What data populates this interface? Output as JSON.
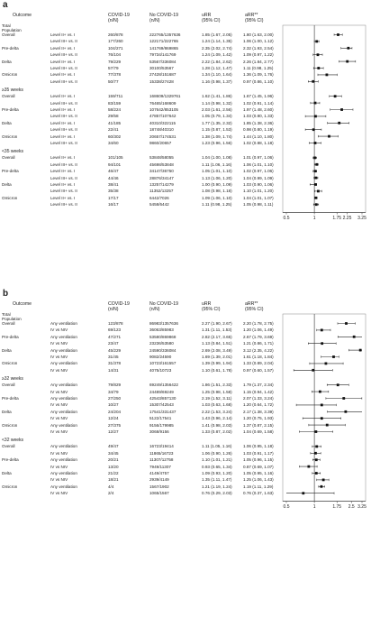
{
  "panel_a": {
    "label": "a",
    "headers": [
      "Outcome",
      "COVID-19\n(n/N)",
      "No COVID-19\n(n/N)",
      "uRR\n(95% CI)",
      "aRR**\n(95% CI)"
    ],
    "ticks": [
      "0.5",
      "1",
      "1.75",
      "2.25",
      "3.25"
    ],
    "sections": [
      {
        "title": "",
        "rows": [
          {
            "group": "Total\nPopulation\nOverall",
            "comp": "Level II+ vs. I",
            "c1": "260/878",
            "c2": "222765/1357636",
            "c3": "1.85 (1.67, 2.05)",
            "c4": "1.80 (1.63, 2.00)",
            "est": 1.8,
            "lo": 1.63,
            "hi": 2.0
          },
          {
            "group": "",
            "comp": "Level III+ vs. II",
            "c1": "177/260",
            "c2": "122171/222765",
            "c3": "1.24 (1.14, 1.35)",
            "c4": "1.06 (1.00, 1.12)",
            "est": 1.06,
            "lo": 1.0,
            "hi": 1.12
          },
          {
            "group": "Pre-delta",
            "comp": "Level II+ vs. I",
            "c1": "104/271",
            "c2": "141769/869865",
            "c3": "2.35 (2.02, 2.74)",
            "c4": "2.32 (1.93, 2.54)",
            "est": 2.32,
            "lo": 1.93,
            "hi": 2.54
          },
          {
            "group": "",
            "comp": "Level III+ vs. II",
            "c1": "76/104",
            "c2": "79734/141769",
            "c3": "1.24 (1.09, 1.42)",
            "c4": "1.09 (0.97, 1.22)",
            "est": 1.09,
            "lo": 0.97,
            "hi": 1.22
          },
          {
            "group": "Delta",
            "comp": "Level II+ vs. I",
            "c1": "79/229",
            "c2": "53567/336084",
            "c3": "2.22 (1.84, 2.62)",
            "c4": "2.26 (1.84, 2.77)",
            "est": 2.26,
            "lo": 1.84,
            "hi": 2.77
          },
          {
            "group": "",
            "comp": "Level III+ vs. II",
            "c1": "57/79",
            "c2": "30100/53567",
            "c3": "1.28 (1.12, 1.47)",
            "c4": "1.11 (0.98, 1.25)",
            "est": 1.11,
            "lo": 0.98,
            "hi": 1.25
          },
          {
            "group": "Omicron",
            "comp": "Level II+ vs. I",
            "c1": "77/378",
            "c2": "27428/151687",
            "c3": "1.34 (1.10, 1.64)",
            "c4": "1.36 (1.09, 1.76)",
            "est": 1.36,
            "lo": 1.09,
            "hi": 1.76
          },
          {
            "group": "",
            "comp": "Level III+ vs. II",
            "c1": "50/77",
            "c2": "15338/27428",
            "c3": "1.16 (0.98, 1.37)",
            "c4": "0.97 (0.86, 1.10)",
            "est": 0.97,
            "lo": 0.86,
            "hi": 1.1
          }
        ]
      },
      {
        "title": "≥35 weeks",
        "rows": [
          {
            "group": "Overall",
            "comp": "Level II+ vs. I",
            "c1": "159/711",
            "c2": "168609/1329761",
            "c3": "1.62 (1.41, 1.86)",
            "c4": "1.67 (1.45, 1.96)",
            "est": 1.67,
            "lo": 1.45,
            "hi": 1.96
          },
          {
            "group": "",
            "comp": "Level III+ vs. II",
            "c1": "83/159",
            "c2": "76465/168609",
            "c3": "1.14 (0.98, 1.32)",
            "c4": "1.02 (0.91, 1.14)",
            "est": 1.02,
            "lo": 0.91,
            "hi": 1.14
          },
          {
            "group": "Pre-delta",
            "comp": "Level II+ vs. I",
            "c1": "58/224",
            "c2": "107642/853105",
            "c3": "2.03 (1.61, 2.56)",
            "c4": "1.97 (1.48, 2.60)",
            "est": 1.97,
            "lo": 1.48,
            "hi": 2.6
          },
          {
            "group": "",
            "comp": "Level III+ vs. II",
            "c1": "29/58",
            "c2": "47857/107642",
            "c3": "1.05 (0.79, 1.34)",
            "c4": "1.03 (0.80, 1.33)",
            "est": 1.03,
            "lo": 0.8,
            "hi": 1.33
          },
          {
            "group": "Delta",
            "comp": "Level II+ vs. I",
            "c1": "41/185",
            "c2": "40310/322115",
            "c3": "1.77 (1.35, 2.32)",
            "c4": "1.85 (1.38, 2.36)",
            "est": 1.85,
            "lo": 1.38,
            "hi": 2.36
          },
          {
            "group": "",
            "comp": "Level III+ vs. II",
            "c1": "22/41",
            "c2": "18748/40310",
            "c3": "1.15 (0.87, 1.53)",
            "c4": "0.98 (0.80, 1.19)",
            "est": 0.98,
            "lo": 0.8,
            "hi": 1.19
          },
          {
            "group": "Omicron",
            "comp": "Level II+ vs. I",
            "c1": "60/302",
            "c2": "20657/174531",
            "c3": "1.38 (1.09, 1.74)",
            "c4": "1.44 (1.10, 1.80)",
            "est": 1.44,
            "lo": 1.1,
            "hi": 1.8
          },
          {
            "group": "",
            "comp": "Level III+ vs. II",
            "c1": "34/60",
            "c2": "9860/20657",
            "c3": "1.23 (0.96, 1.56)",
            "c4": "1.02 (0.88, 1.18)",
            "est": 1.02,
            "lo": 0.88,
            "hi": 1.18
          }
        ]
      },
      {
        "title": "<35 weeks",
        "rows": [
          {
            "group": "Overall",
            "comp": "Level II+ vs. I",
            "c1": "101/105",
            "c2": "53848/58055",
            "c3": "1.04 (1.00, 1.08)",
            "c4": "1.01 (0.97, 1.06)",
            "est": 1.01,
            "lo": 0.97,
            "hi": 1.06
          },
          {
            "group": "",
            "comp": "Level III+ vs. II",
            "c1": "94/101",
            "c2": "45698/53848",
            "c3": "1.11 (1.06, 1.16)",
            "c4": "1.06 (1.01, 1.10)",
            "est": 1.06,
            "lo": 1.01,
            "hi": 1.1
          },
          {
            "group": "Pre-delta",
            "comp": "Level II+ vs. I",
            "c1": "46/47",
            "c2": "34147/36750",
            "c3": "1.05 (1.01, 1.10)",
            "c4": "1.02 (0.97, 1.06)",
            "est": 1.02,
            "lo": 0.97,
            "hi": 1.06
          },
          {
            "group": "",
            "comp": "Level III+ vs. II",
            "c1": "44/46",
            "c2": "28876/34147",
            "c3": "1.13 (1.06, 1.20)",
            "c4": "1.04 (0.99, 1.09)",
            "est": 1.04,
            "lo": 0.99,
            "hi": 1.09
          },
          {
            "group": "Delta",
            "comp": "Level II+ vs. I",
            "c1": "38/41",
            "c2": "13257/14279",
            "c3": "1.00 (0.90, 1.09)",
            "c4": "1.03 (0.90, 1.06)",
            "est": 1.03,
            "lo": 0.9,
            "hi": 1.06
          },
          {
            "group": "",
            "comp": "Level III+ vs. II",
            "c1": "35/38",
            "c2": "11352/13257",
            "c3": "1.08 (0.98, 1.18)",
            "c4": "1.10 (1.01, 1.20)",
            "est": 1.1,
            "lo": 1.01,
            "hi": 1.2
          },
          {
            "group": "Omicron",
            "comp": "Level II+ vs. I",
            "c1": "17/17",
            "c2": "6442/7026",
            "c3": "1.09 (1.06, 1.10)",
            "c4": "1.04 (1.01, 1.07)",
            "est": 1.04,
            "lo": 1.01,
            "hi": 1.07
          },
          {
            "group": "",
            "comp": "Level III+ vs. II",
            "c1": "16/17",
            "c2": "5458/6442",
            "c3": "1.11 (0.98, 1.25)",
            "c4": "1.05 (0.98, 1.11)",
            "est": 1.05,
            "lo": 0.98,
            "hi": 1.11
          }
        ]
      }
    ]
  },
  "panel_b": {
    "label": "b",
    "headers": [
      "Outcome",
      "COVID-19\n(n/N)",
      "No COVID-19\n(n/N)",
      "uRR\n(95% CI)",
      "aRR**\n(95% CI)"
    ],
    "ticks": [
      "0.5",
      "1",
      "1.75",
      "2.5",
      "3.25"
    ],
    "sections": [
      {
        "title": "",
        "rows": [
          {
            "group": "Total\nPopulation\nOverall",
            "comp": "Any ventilation",
            "c1": "123/878",
            "c2": "86983/1357636",
            "c3": "2.27 (1.90, 2.67)",
            "c4": "2.20 (1.78, 2.75)",
            "est": 2.2,
            "lo": 1.78,
            "hi": 2.75
          },
          {
            "group": "",
            "comp": "IV vs NIV",
            "c1": "69/123",
            "c2": "36063/85983",
            "c3": "1.31 (1.11, 1.53)",
            "c4": "1.20 (1.06, 1.49)",
            "est": 1.2,
            "lo": 1.06,
            "hi": 1.49
          },
          {
            "group": "Pre-delta",
            "comp": "Any ventilation",
            "c1": "47/271",
            "c2": "53580/869868",
            "c3": "2.82 (2.17, 3.65)",
            "c4": "2.67 (1.79, 3.69)",
            "est": 2.67,
            "lo": 1.79,
            "hi": 3.69
          },
          {
            "group": "",
            "comp": "IV vs NIV",
            "c1": "23/47",
            "c2": "23236/53580",
            "c3": "1.13 (0.84, 1.51)",
            "c4": "1.21 (0.86, 1.71)",
            "est": 1.21,
            "lo": 0.86,
            "hi": 1.71
          },
          {
            "group": "Delta",
            "comp": "Any ventilation",
            "c1": "45/229",
            "c2": "24590/336084",
            "c3": "2.69 (2.08, 3.49)",
            "c4": "3.12 (2.35, 4.22)",
            "est": 3.12,
            "lo": 2.35,
            "hi": 4.22
          },
          {
            "group": "",
            "comp": "IV vs NIV",
            "c1": "31/45",
            "c2": "9082/24590",
            "c3": "1.69 (1.39, 2.01)",
            "c4": "1.61 (1.18, 1.84)",
            "est": 1.61,
            "lo": 1.18,
            "hi": 1.84
          },
          {
            "group": "Omicron",
            "comp": "Any ventilation",
            "c1": "31/378",
            "c2": "10723/161557",
            "c3": "1.39 (0.99, 1.94)",
            "c4": "1.33 (0.89, 2.04)",
            "est": 1.33,
            "lo": 0.89,
            "hi": 2.04
          },
          {
            "group": "",
            "comp": "IV vs NIV",
            "c1": "14/31",
            "c2": "4075/10723",
            "c3": "1.10 (0.61, 1.78)",
            "c4": "0.97 (0.60, 1.57)",
            "est": 0.97,
            "lo": 0.6,
            "hi": 1.57
          }
        ]
      },
      {
        "title": "≥32 weeks",
        "rows": [
          {
            "group": "Overall",
            "comp": "Any ventilation",
            "c1": "79/829",
            "c2": "69249/1356422",
            "c3": "1.86 (1.51, 2.33)",
            "c4": "1.79 (1.37, 2.34)",
            "est": 1.79,
            "lo": 1.37,
            "hi": 2.34
          },
          {
            "group": "",
            "comp": "IV vs NIV",
            "c1": "34/79",
            "c2": "24489/69249",
            "c3": "1.25 (0.98, 1.58)",
            "c4": "1.15 (0.94, 1.42)",
            "est": 1.15,
            "lo": 0.94,
            "hi": 1.42
          },
          {
            "group": "Pre-delta",
            "comp": "Any ventilation",
            "c1": "27/250",
            "c2": "42543/857130",
            "c3": "2.19 (1.52, 3.11)",
            "c4": "2.07 (1.33, 3.24)",
            "est": 2.07,
            "lo": 1.33,
            "hi": 3.24
          },
          {
            "group": "",
            "comp": "IV vs NIV",
            "c1": "10/27",
            "c2": "15307/42543",
            "c3": "1.03 (0.63, 1.68)",
            "c4": "1.20 (0.64, 1.72)",
            "est": 1.2,
            "lo": 0.64,
            "hi": 1.72
          },
          {
            "group": "Delta",
            "comp": "Any ventilation",
            "c1": "24/204",
            "c2": "17541/331437",
            "c3": "2.22 (1.53, 3.24)",
            "c4": "2.17 (1.38, 3.39)",
            "est": 2.17,
            "lo": 1.38,
            "hi": 3.39
          },
          {
            "group": "",
            "comp": "IV vs NIV",
            "c1": "12/24",
            "c2": "5122/17541",
            "c3": "1.43 (0.96, 2.14)",
            "c4": "1.20 (0.75, 1.93)",
            "est": 1.2,
            "lo": 0.75,
            "hi": 1.93
          },
          {
            "group": "Omicron",
            "comp": "Any ventilation",
            "c1": "27/375",
            "c2": "9156/179985",
            "c3": "1.41 (0.98, 2.03)",
            "c4": "1.37 (0.87, 2.15)",
            "est": 1.37,
            "lo": 0.87,
            "hi": 2.15
          },
          {
            "group": "",
            "comp": "IV vs NIV",
            "c1": "12/27",
            "c2": "3068/9156",
            "c3": "1.33 (0.87, 2.02)",
            "c4": "1.04 (0.69, 1.58)",
            "est": 1.04,
            "lo": 0.69,
            "hi": 1.58
          }
        ]
      },
      {
        "title": "<32 weeks",
        "rows": [
          {
            "group": "Overall",
            "comp": "Any ventilation",
            "c1": "49/47",
            "c2": "16723/19414",
            "c3": "1.11 (1.05, 1.16)",
            "c4": "1.06 (0.95, 1.18)",
            "est": 1.06,
            "lo": 0.95,
            "hi": 1.18
          },
          {
            "group": "",
            "comp": "IV vs NIV",
            "c1": "34/45",
            "c2": "11865/16723",
            "c3": "1.06 (0.90, 1.26)",
            "c4": "1.03 (0.91, 1.17)",
            "est": 1.03,
            "lo": 0.91,
            "hi": 1.17
          },
          {
            "group": "Pre-delta",
            "comp": "Any ventilation",
            "c1": "20/21",
            "c2": "11307/12758",
            "c3": "1.10 (1.01, 1.21)",
            "c4": "1.05 (0.96, 1.15)",
            "est": 1.05,
            "lo": 0.96,
            "hi": 1.15
          },
          {
            "group": "",
            "comp": "IV vs NIV",
            "c1": "13/20",
            "c2": "7949/11307",
            "c3": "0.93 (0.65, 1.34)",
            "c4": "0.87 (0.69, 1.07)",
            "est": 0.87,
            "lo": 0.69,
            "hi": 1.07
          },
          {
            "group": "Delta",
            "comp": "Any ventilation",
            "c1": "21/22",
            "c2": "4149/4757",
            "c3": "1.09 (0.93, 1.20)",
            "c4": "1.05 (0.95, 1.16)",
            "est": 1.05,
            "lo": 0.95,
            "hi": 1.16
          },
          {
            "group": "",
            "comp": "IV vs NIV",
            "c1": "18/21",
            "c2": "2939/4149",
            "c3": "1.35 (1.11, 1.47)",
            "c4": "1.25 (1.06, 1.43)",
            "est": 1.25,
            "lo": 1.06,
            "hi": 1.43
          },
          {
            "group": "Omicron",
            "comp": "Any ventilation",
            "c1": "4/4",
            "c2": "1567/1902",
            "c3": "1.21 (1.19, 1.24)",
            "c4": "1.19 (1.11, 1.29)",
            "est": 1.19,
            "lo": 1.11,
            "hi": 1.29
          },
          {
            "group": "",
            "comp": "IV vs NIV",
            "c1": "2/4",
            "c2": "1065/1567",
            "c3": "0.76 (0.29, 2.03)",
            "c4": "0.76 (0.37, 1.63)",
            "est": 0.76,
            "lo": 0.37,
            "hi": 1.63
          }
        ]
      }
    ]
  },
  "chart_data": [
    {
      "type": "scatter",
      "panel": "a",
      "x_scale": "log",
      "xlim": [
        0.5,
        3.25
      ],
      "x_ticks": [
        0.5,
        1,
        1.75,
        2.25,
        3.25
      ],
      "reference_line": 1
    },
    {
      "type": "scatter",
      "panel": "b",
      "x_scale": "log",
      "xlim": [
        0.5,
        3.25
      ],
      "x_ticks": [
        0.5,
        1,
        1.75,
        2.5,
        3.25
      ],
      "reference_line": 1
    }
  ]
}
